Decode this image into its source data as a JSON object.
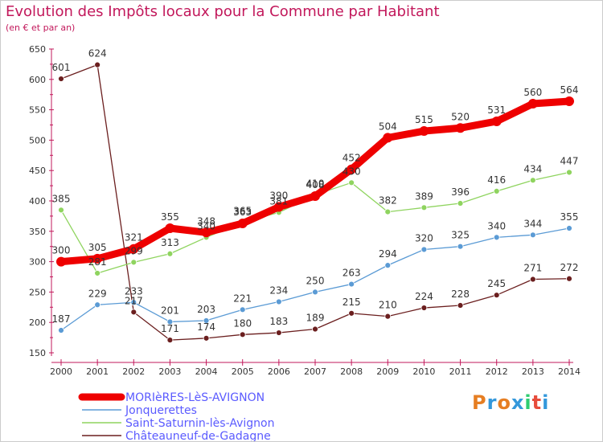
{
  "header": {
    "title": "Evolution des Impôts locaux pour la Commune par Habitant",
    "subtitle": "(en € et par an)"
  },
  "logo": {
    "text": "Proxiti",
    "colors": [
      "#e67e22",
      "#3498db",
      "#e67e22",
      "#3498db",
      "#2ecc71",
      "#e74c3c",
      "#3498db"
    ]
  },
  "chart_data": {
    "type": "line",
    "title": "Evolution des Impôts locaux pour la Commune par Habitant",
    "subtitle": "(en € et par an)",
    "xlabel": "",
    "ylabel": "",
    "x": [
      "2000",
      "2001",
      "2002",
      "2003",
      "2004",
      "2005",
      "2006",
      "2007",
      "2008",
      "2009",
      "2010",
      "2011",
      "2012",
      "2013",
      "2014"
    ],
    "ylim": [
      150,
      650
    ],
    "yticks": [
      "150",
      "200",
      "250",
      "300",
      "350",
      "400",
      "450",
      "500",
      "550",
      "600",
      "650"
    ],
    "grid": false,
    "legend_position": "bottom-left",
    "series": [
      {
        "name": "MORIèRES-LèS-AVIGNON",
        "color": "#ee0000",
        "values": [
          300,
          305,
          321,
          355,
          348,
          363,
          390,
          408,
          452,
          504,
          515,
          520,
          531,
          560,
          564
        ],
        "labels": [
          "300",
          "305",
          "321",
          "355",
          "348",
          "363",
          "390",
          "408",
          "452",
          "504",
          "515",
          "520",
          "531",
          "560",
          "564"
        ]
      },
      {
        "name": "Jonquerettes",
        "color": "#5b9bd5",
        "values": [
          187,
          229,
          233,
          201,
          203,
          221,
          234,
          250,
          263,
          294,
          320,
          325,
          340,
          344,
          355
        ],
        "labels": [
          "187",
          "229",
          "233",
          "201",
          "203",
          "221",
          "234",
          "250",
          "263",
          "294",
          "320",
          "325",
          "340",
          "344",
          "355"
        ]
      },
      {
        "name": "Saint-Saturnin-lès-Avignon",
        "color": "#8fd45f",
        "values": [
          385,
          281,
          299,
          313,
          340,
          365,
          381,
          410,
          430,
          382,
          389,
          396,
          416,
          434,
          447
        ],
        "labels": [
          "385",
          "281",
          "299",
          "313",
          "340",
          "365",
          "381",
          "410",
          "430",
          "382",
          "389",
          "396",
          "416",
          "434",
          "447"
        ]
      },
      {
        "name": "Châteauneuf-de-Gadagne",
        "color": "#6b1f1f",
        "values": [
          601,
          624,
          217,
          171,
          174,
          180,
          183,
          189,
          215,
          210,
          224,
          228,
          245,
          271,
          272
        ],
        "labels": [
          "601",
          "624",
          "217",
          "171",
          "174",
          "180",
          "183",
          "189",
          "215",
          "210",
          "224",
          "228",
          "245",
          "271",
          "272"
        ]
      }
    ]
  }
}
